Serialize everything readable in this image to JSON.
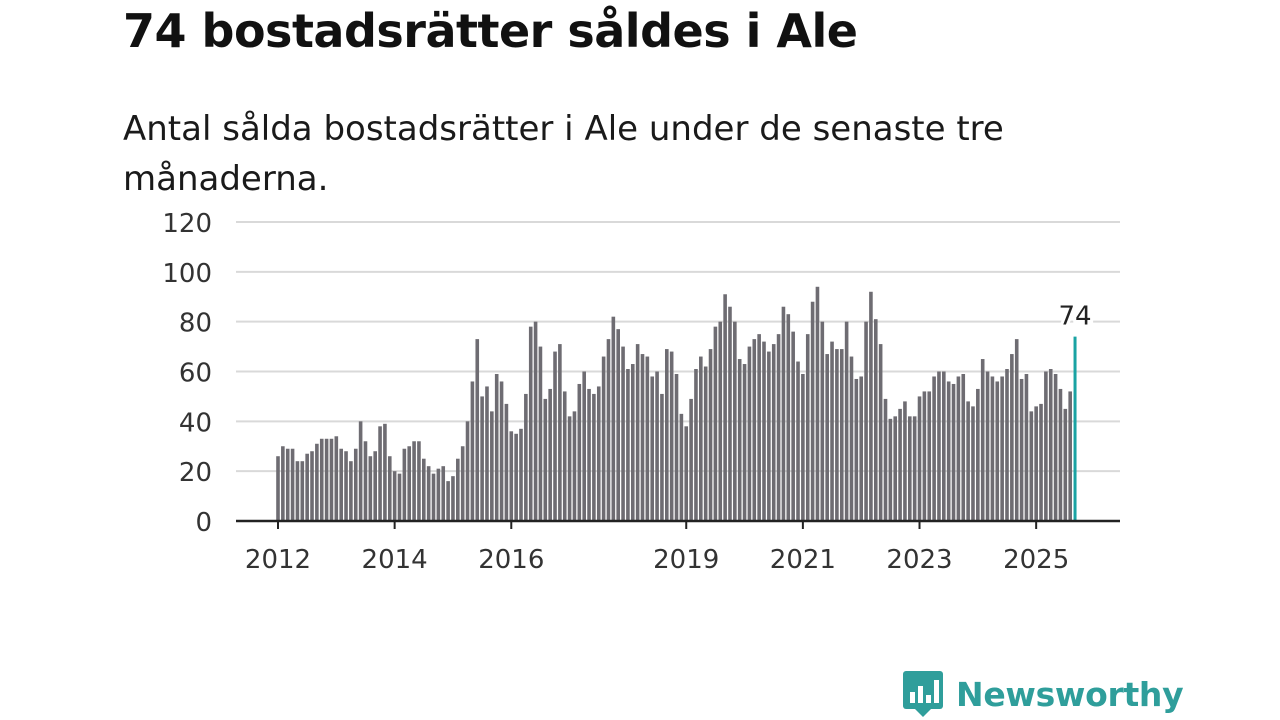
{
  "title": "74 bostadsrätter såldes i Ale",
  "subtitle": "Antal sålda bostadsrätter i Ale under de senaste tre månaderna.",
  "brand": {
    "name": "Newsworthy",
    "color": "#2f9e9b",
    "icon": "newsworthy-logo-icon"
  },
  "chart_data": {
    "type": "bar",
    "title": "74 bostadsrätter såldes i Ale",
    "xlabel": "",
    "ylabel": "",
    "ylim": [
      0,
      120
    ],
    "yticks": [
      0,
      20,
      40,
      60,
      80,
      100,
      120
    ],
    "xtick_labels": [
      {
        "label": "2012",
        "index": 0
      },
      {
        "label": "2014",
        "index": 24
      },
      {
        "label": "2016",
        "index": 48
      },
      {
        "label": "2019",
        "index": 84
      },
      {
        "label": "2021",
        "index": 108
      },
      {
        "label": "2023",
        "index": 132
      },
      {
        "label": "2025",
        "index": 156
      }
    ],
    "bar_color": "#6e6c72",
    "highlight_color": "#1aa3a3",
    "highlight_label": "74",
    "grid": true,
    "values": [
      26,
      30,
      29,
      29,
      24,
      24,
      27,
      28,
      31,
      33,
      33,
      33,
      34,
      29,
      28,
      24,
      29,
      40,
      32,
      26,
      28,
      38,
      39,
      26,
      20,
      19,
      29,
      30,
      32,
      32,
      25,
      22,
      19,
      21,
      22,
      16,
      18,
      25,
      30,
      40,
      56,
      73,
      50,
      54,
      44,
      59,
      56,
      47,
      36,
      35,
      37,
      51,
      78,
      80,
      70,
      49,
      53,
      68,
      71,
      52,
      42,
      44,
      55,
      60,
      53,
      51,
      54,
      66,
      73,
      82,
      77,
      70,
      61,
      63,
      71,
      67,
      66,
      58,
      60,
      51,
      69,
      68,
      59,
      43,
      38,
      49,
      61,
      66,
      62,
      69,
      78,
      80,
      91,
      86,
      80,
      65,
      63,
      70,
      73,
      75,
      72,
      68,
      71,
      75,
      86,
      83,
      76,
      64,
      59,
      75,
      88,
      94,
      80,
      67,
      72,
      69,
      69,
      80,
      66,
      57,
      58,
      80,
      92,
      81,
      71,
      49,
      41,
      42,
      45,
      48,
      42,
      42,
      50,
      52,
      52,
      58,
      60,
      60,
      56,
      55,
      58,
      59,
      48,
      46,
      53,
      65,
      60,
      58,
      56,
      58,
      61,
      67,
      73,
      57,
      59,
      44,
      46,
      47,
      60,
      61,
      59,
      53,
      45,
      52,
      74
    ]
  }
}
